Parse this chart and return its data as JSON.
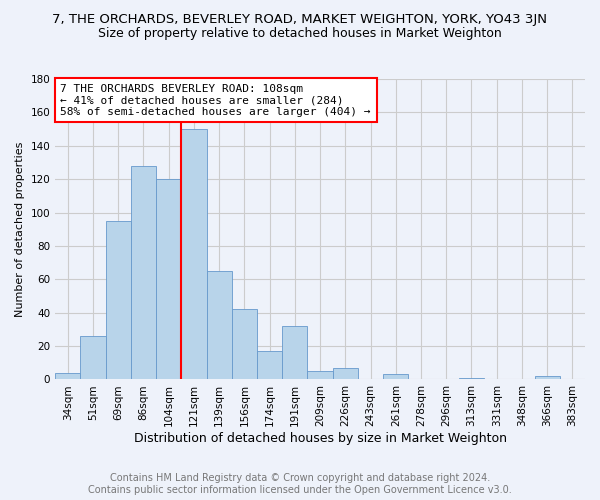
{
  "title": "7, THE ORCHARDS, BEVERLEY ROAD, MARKET WEIGHTON, YORK, YO43 3JN",
  "subtitle": "Size of property relative to detached houses in Market Weighton",
  "xlabel": "Distribution of detached houses by size in Market Weighton",
  "ylabel": "Number of detached properties",
  "footer_line1": "Contains HM Land Registry data © Crown copyright and database right 2024.",
  "footer_line2": "Contains public sector information licensed under the Open Government Licence v3.0.",
  "annotation_line1": "7 THE ORCHARDS BEVERLEY ROAD: 108sqm",
  "annotation_line2": "← 41% of detached houses are smaller (284)",
  "annotation_line3": "58% of semi-detached houses are larger (404) →",
  "bar_labels": [
    "34sqm",
    "51sqm",
    "69sqm",
    "86sqm",
    "104sqm",
    "121sqm",
    "139sqm",
    "156sqm",
    "174sqm",
    "191sqm",
    "209sqm",
    "226sqm",
    "243sqm",
    "261sqm",
    "278sqm",
    "296sqm",
    "313sqm",
    "331sqm",
    "348sqm",
    "366sqm",
    "383sqm"
  ],
  "bar_values": [
    4,
    26,
    95,
    128,
    120,
    150,
    65,
    42,
    17,
    32,
    5,
    7,
    0,
    3,
    0,
    0,
    1,
    0,
    0,
    2,
    0
  ],
  "bar_color": "#b8d4ea",
  "bar_edge_color": "#6699cc",
  "vline_x": 4.5,
  "vline_color": "red",
  "ylim": [
    0,
    180
  ],
  "yticks": [
    0,
    20,
    40,
    60,
    80,
    100,
    120,
    140,
    160,
    180
  ],
  "grid_color": "#cccccc",
  "background_color": "#eef2fa",
  "annotation_box_color": "white",
  "annotation_box_edge": "red",
  "title_fontsize": 9.5,
  "subtitle_fontsize": 9,
  "xlabel_fontsize": 9,
  "ylabel_fontsize": 8,
  "footer_fontsize": 7,
  "annotation_fontsize": 8,
  "tick_fontsize": 7.5
}
